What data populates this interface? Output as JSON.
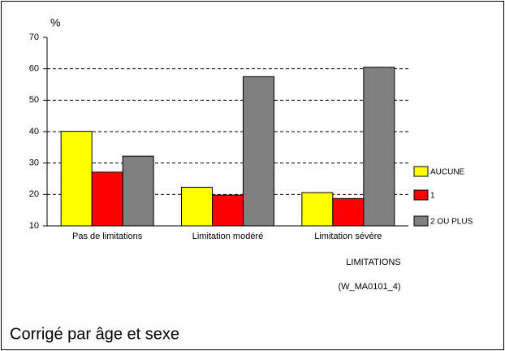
{
  "chart_data": {
    "type": "bar",
    "y_label": "%",
    "x_label": "LIMITATIONS",
    "annotation": "(W_MA0101_4)",
    "footnote": "Corrigé par âge et sexe",
    "categories": [
      "Pas de limitations",
      "Limitation modéré",
      "Limitation sévère"
    ],
    "series": [
      {
        "name": "AUCUNE",
        "color": "#ffff00",
        "values": [
          40.1,
          22.3,
          20.6
        ]
      },
      {
        "name": "1",
        "color": "#ff0000",
        "values": [
          27.1,
          19.8,
          18.7
        ]
      },
      {
        "name": "2 OU PLUS",
        "color": "#808080",
        "values": [
          32.2,
          57.5,
          60.5
        ]
      }
    ],
    "ylim": [
      10,
      70
    ],
    "yticks": [
      10,
      20,
      30,
      40,
      50,
      60,
      70
    ],
    "grid": true,
    "legend": "right"
  }
}
